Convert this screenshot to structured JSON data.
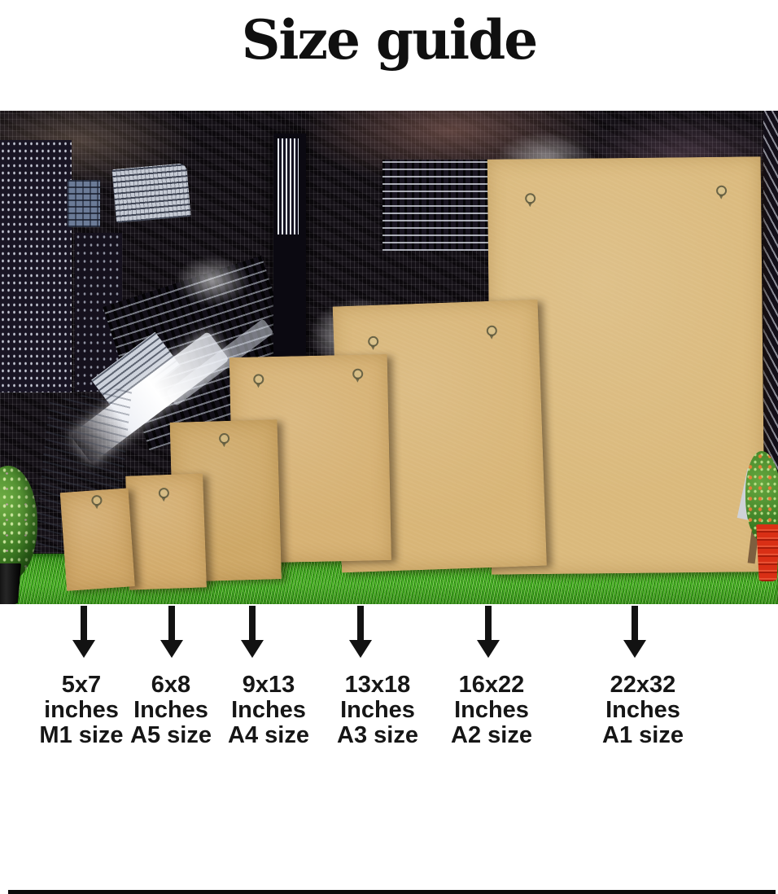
{
  "title": "Size guide",
  "labels": [
    {
      "dims": "5x7",
      "unit": "inches",
      "size": "M1 size"
    },
    {
      "dims": "6x8",
      "unit": "Inches",
      "size": "A5 size"
    },
    {
      "dims": "9x13",
      "unit": "Inches",
      "size": "A4 size"
    },
    {
      "dims": "13x18",
      "unit": "Inches",
      "size": "A3 size"
    },
    {
      "dims": "16x22",
      "unit": "Inches",
      "size": "A2 size"
    },
    {
      "dims": "22x32",
      "unit": "Inches",
      "size": "A1 size"
    }
  ],
  "photo": {
    "boards": [
      {
        "label": "5x7 inches M1 board",
        "hangers": 1
      },
      {
        "label": "6x8 inches A5 board",
        "hangers": 1
      },
      {
        "label": "9x13 inches A4 board",
        "hangers": 1
      },
      {
        "label": "13x18 inches A3 board",
        "hangers": 2
      },
      {
        "label": "16x22 inches A2 board",
        "hangers": 2
      },
      {
        "label": "22x32 inches A1 board",
        "hangers": 2
      }
    ],
    "scene": {
      "backdrop": "black and white night city skyline",
      "ground": "green artificial grass",
      "left_plant": "green bush in black pot",
      "right_plant": "orange flower plant in red pot"
    }
  },
  "colors": {
    "board_tan": "#d5b273",
    "grass_green": "#42a81f",
    "arrow_black": "#121212",
    "title_black": "#101010",
    "pot_black": "#141414",
    "pot_red": "#d92f15"
  }
}
